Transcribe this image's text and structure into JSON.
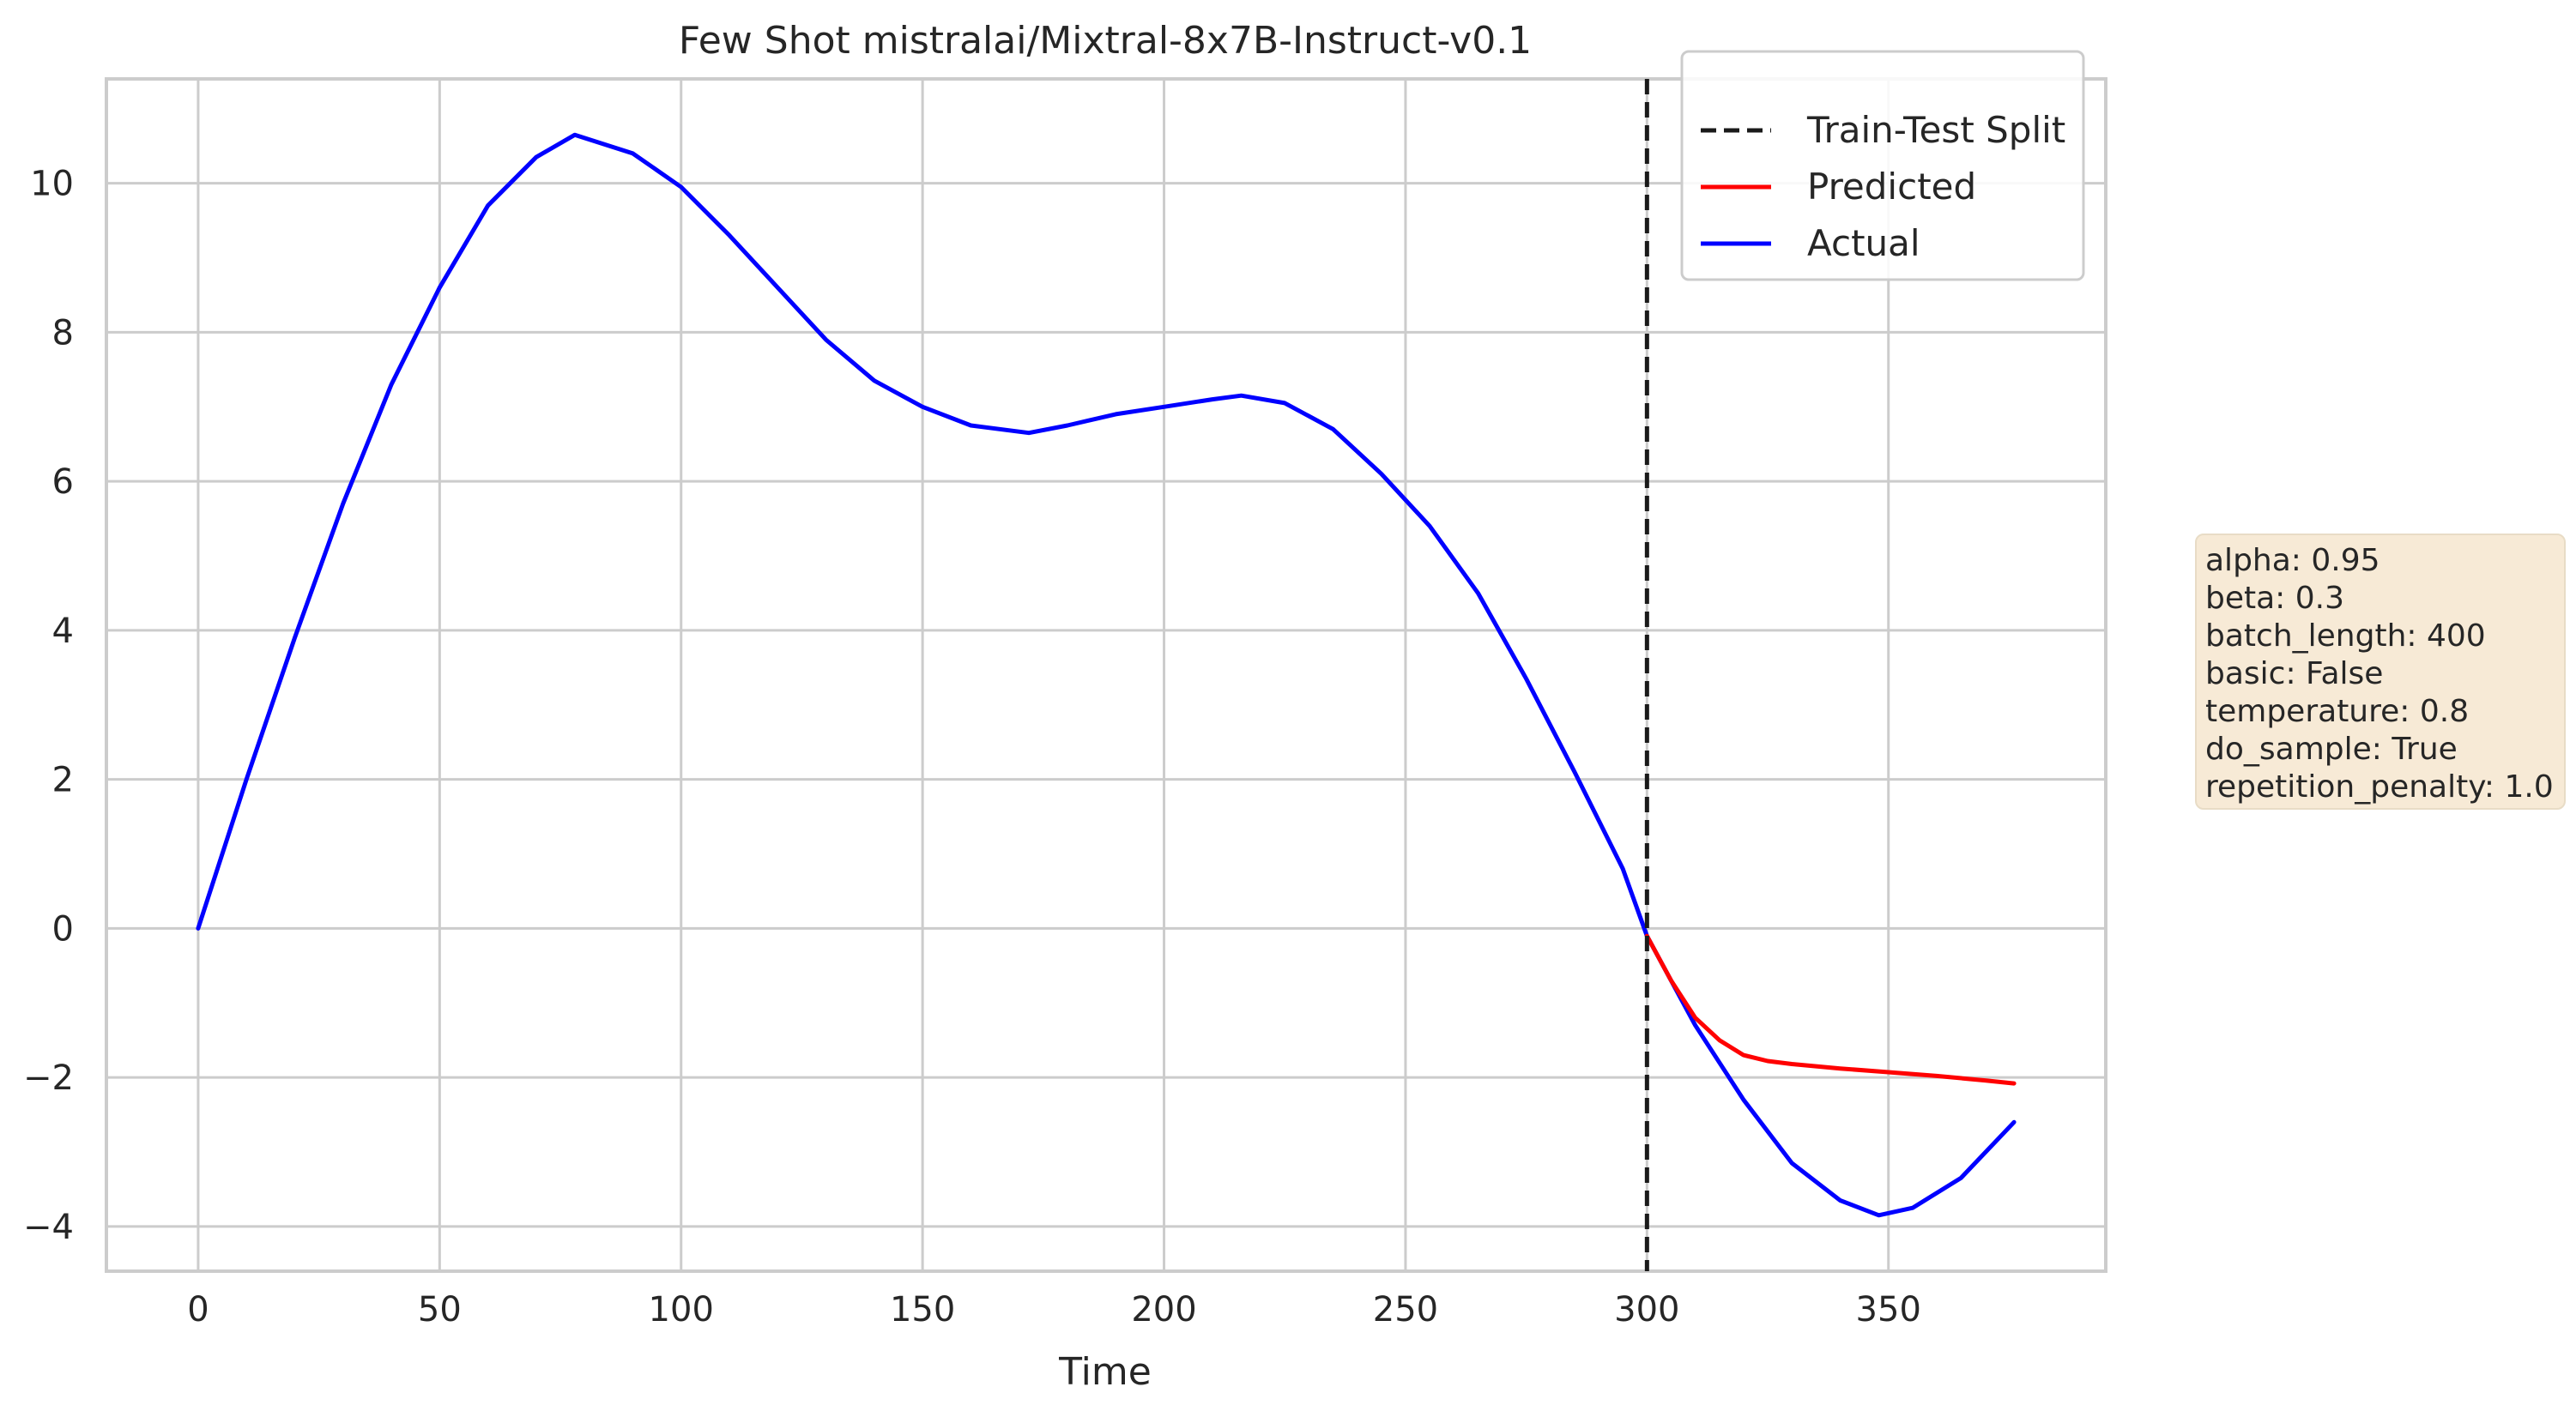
{
  "chart_data": {
    "type": "line",
    "title": "Few Shot mistralai/Mixtral-8x7B-Instruct-v0.1",
    "xlabel": "Time",
    "ylabel": "",
    "xlim": [
      -19,
      395
    ],
    "ylim": [
      -4.6,
      11.4
    ],
    "xticks": [
      0,
      50,
      100,
      150,
      200,
      250,
      300,
      350
    ],
    "yticks": [
      -4,
      -2,
      0,
      2,
      4,
      6,
      8,
      10
    ],
    "xtick_labels": [
      "0",
      "50",
      "100",
      "150",
      "200",
      "250",
      "300",
      "350"
    ],
    "ytick_labels": [
      "−4",
      "−2",
      "0",
      "2",
      "4",
      "6",
      "8",
      "10"
    ],
    "grid": true,
    "legend_position": "top-right",
    "legend": [
      "Train-Test Split",
      "Predicted",
      "Actual"
    ],
    "split": {
      "name": "Train-Test Split",
      "x": 300,
      "color": "#1a1a1a",
      "style": "dashed"
    },
    "series": [
      {
        "name": "Actual",
        "color": "#0000ff",
        "x": [
          0,
          10,
          20,
          30,
          40,
          50,
          60,
          70,
          78,
          90,
          100,
          110,
          120,
          130,
          140,
          150,
          160,
          172,
          180,
          190,
          200,
          210,
          216,
          225,
          235,
          245,
          255,
          265,
          275,
          285,
          295,
          300,
          310,
          320,
          330,
          340,
          348,
          355,
          365,
          376
        ],
        "y": [
          0,
          2.0,
          3.9,
          5.7,
          7.3,
          8.6,
          9.7,
          10.35,
          10.65,
          10.4,
          9.95,
          9.3,
          8.6,
          7.9,
          7.35,
          7.0,
          6.75,
          6.65,
          6.75,
          6.9,
          7.0,
          7.1,
          7.15,
          7.05,
          6.7,
          6.1,
          5.4,
          4.5,
          3.35,
          2.1,
          0.8,
          -0.1,
          -1.3,
          -2.3,
          -3.15,
          -3.65,
          -3.85,
          -3.75,
          -3.35,
          -2.6
        ]
      },
      {
        "name": "Predicted",
        "color": "#ff0000",
        "x": [
          300,
          305,
          310,
          315,
          320,
          325,
          330,
          340,
          350,
          360,
          370,
          376
        ],
        "y": [
          -0.1,
          -0.7,
          -1.2,
          -1.5,
          -1.7,
          -1.78,
          -1.82,
          -1.88,
          -1.93,
          -1.98,
          -2.04,
          -2.08
        ]
      }
    ]
  },
  "params_box": {
    "lines": [
      "alpha: 0.95",
      "beta: 0.3",
      "batch_length: 400",
      "basic: False",
      "temperature: 0.8",
      "do_sample: True",
      "repetition_penalty: 1.0"
    ]
  }
}
